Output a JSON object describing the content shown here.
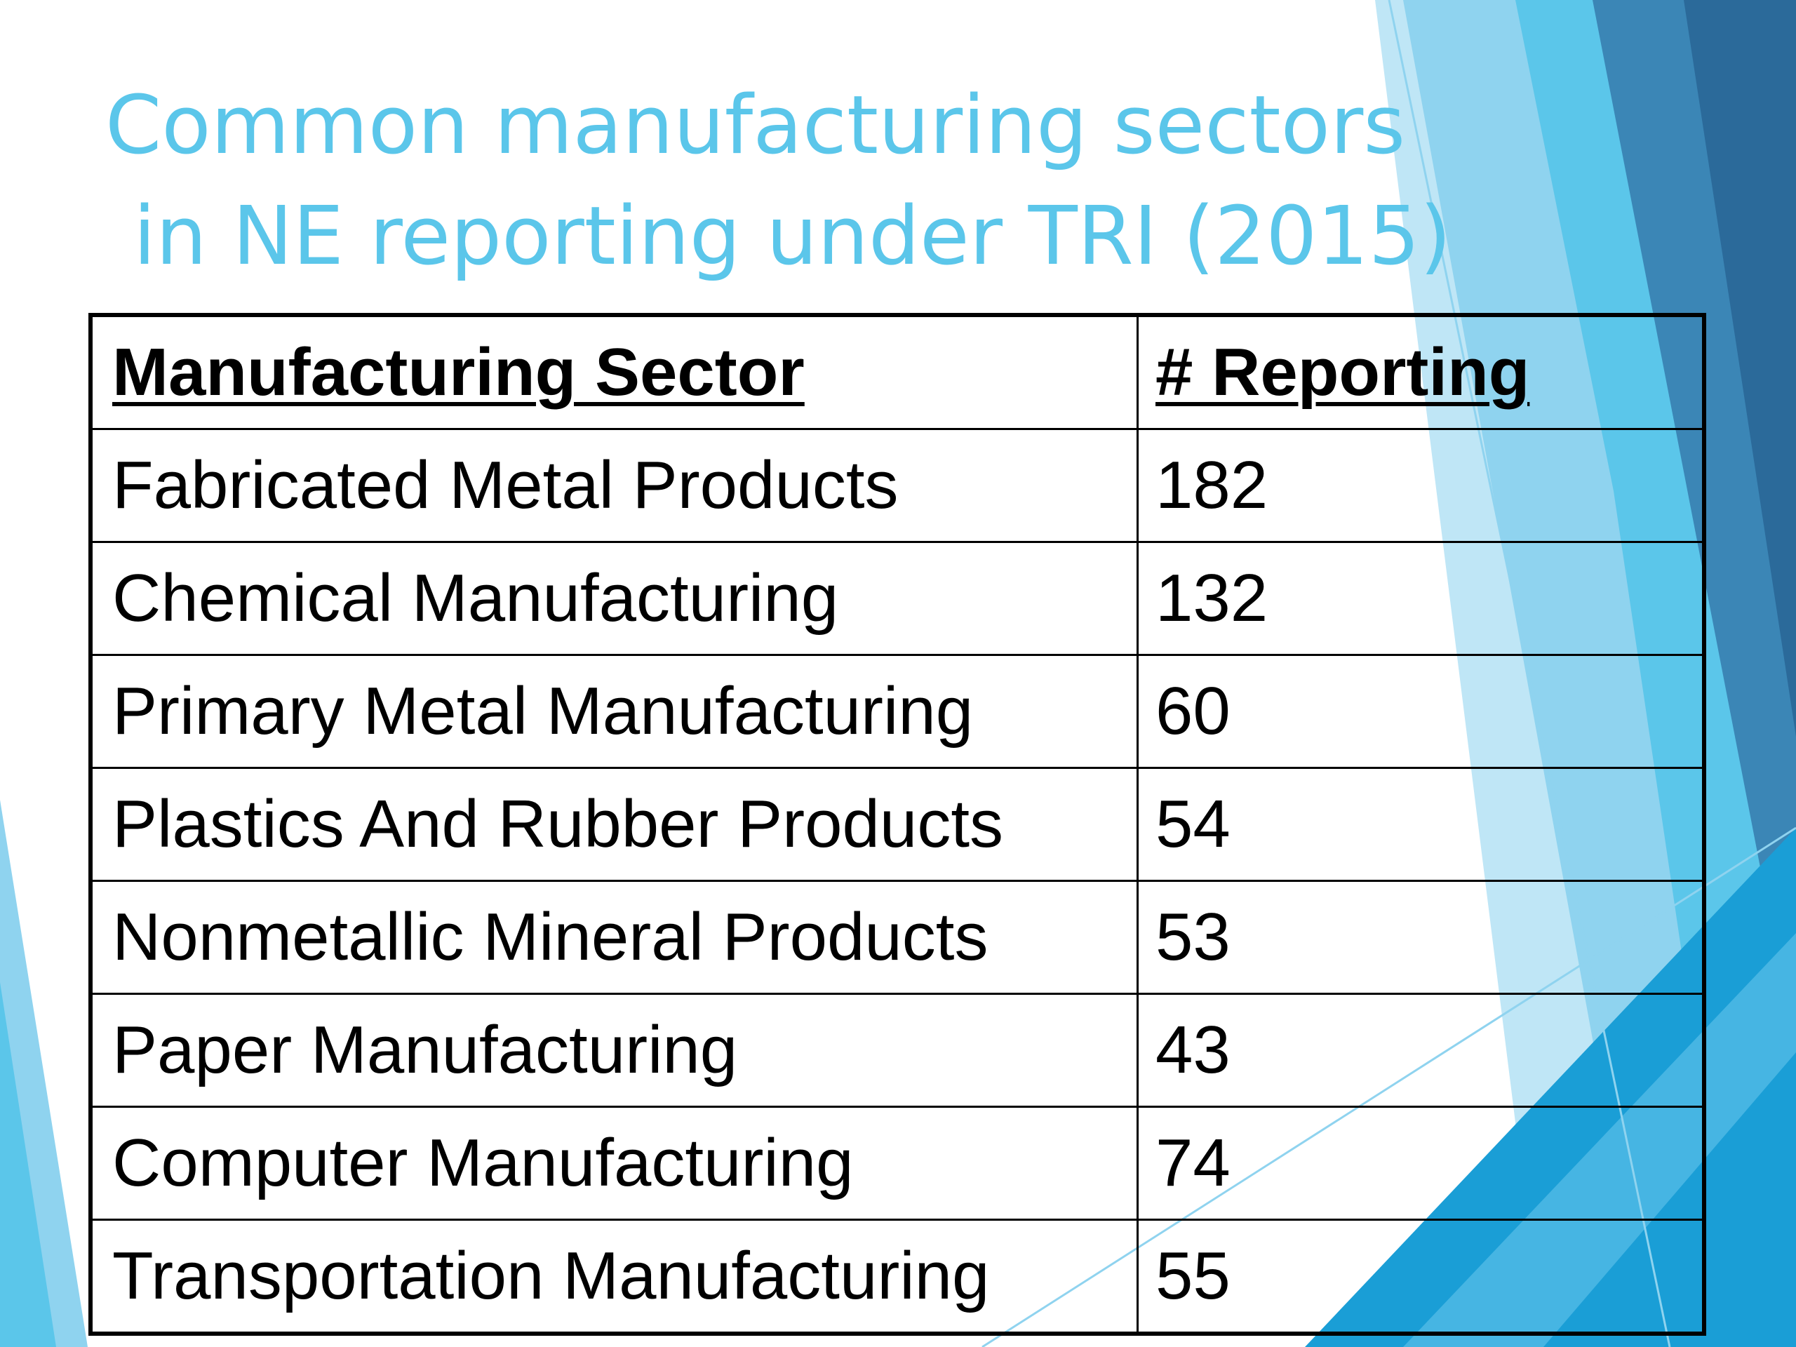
{
  "slide": {
    "title_line_1": "Common manufacturing sectors",
    "title_line_2": "in NE reporting under TRI (2015)",
    "accent_colors": [
      "#5bc6ea",
      "#2b6a9a",
      "#1a9ed6",
      "#8fd3ef"
    ]
  },
  "table": {
    "headers": {
      "sector": "Manufacturing Sector",
      "count": "# Reporting"
    },
    "rows": [
      {
        "sector": "Fabricated Metal Products",
        "count": "182"
      },
      {
        "sector": "Chemical Manufacturing",
        "count": "132"
      },
      {
        "sector": "Primary Metal Manufacturing",
        "count": "60"
      },
      {
        "sector": "Plastics And Rubber Products",
        "count": "54"
      },
      {
        "sector": "Nonmetallic Mineral Products",
        "count": "53"
      },
      {
        "sector": "Paper Manufacturing",
        "count": "43"
      },
      {
        "sector": "Computer Manufacturing",
        "count": "74"
      },
      {
        "sector": "Transportation Manufacturing",
        "count": "55"
      }
    ]
  }
}
